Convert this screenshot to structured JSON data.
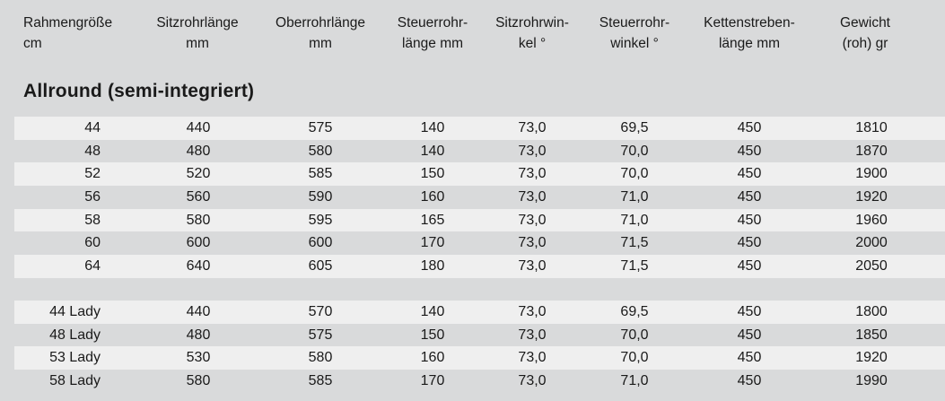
{
  "headers": [
    "Rahmengröße\ncm",
    "Sitzrohrlänge\nmm",
    "Oberrohrlänge\nmm",
    "Steuerrohr-\nlänge mm",
    "Sitzrohrwin-\nkel °",
    "Steuerrohr-\nwinkel °",
    "Kettenstreben-\nlänge mm",
    "Gewicht\n(roh) gr"
  ],
  "section_title": "Allround (semi-integriert)",
  "groups": [
    {
      "rows": [
        [
          "44",
          "440",
          "575",
          "140",
          "73,0",
          "69,5",
          "450",
          "1810"
        ],
        [
          "48",
          "480",
          "580",
          "140",
          "73,0",
          "70,0",
          "450",
          "1870"
        ],
        [
          "52",
          "520",
          "585",
          "150",
          "73,0",
          "70,0",
          "450",
          "1900"
        ],
        [
          "56",
          "560",
          "590",
          "160",
          "73,0",
          "71,0",
          "450",
          "1920"
        ],
        [
          "58",
          "580",
          "595",
          "165",
          "73,0",
          "71,0",
          "450",
          "1960"
        ],
        [
          "60",
          "600",
          "600",
          "170",
          "73,0",
          "71,5",
          "450",
          "2000"
        ],
        [
          "64",
          "640",
          "605",
          "180",
          "73,0",
          "71,5",
          "450",
          "2050"
        ]
      ]
    },
    {
      "rows": [
        [
          "44 Lady",
          "440",
          "570",
          "140",
          "73,0",
          "69,5",
          "450",
          "1800"
        ],
        [
          "48 Lady",
          "480",
          "575",
          "150",
          "73,0",
          "70,0",
          "450",
          "1850"
        ],
        [
          "53 Lady",
          "530",
          "580",
          "160",
          "73,0",
          "70,0",
          "450",
          "1920"
        ],
        [
          "58 Lady",
          "580",
          "585",
          "170",
          "73,0",
          "71,0",
          "450",
          "1990"
        ]
      ]
    }
  ]
}
